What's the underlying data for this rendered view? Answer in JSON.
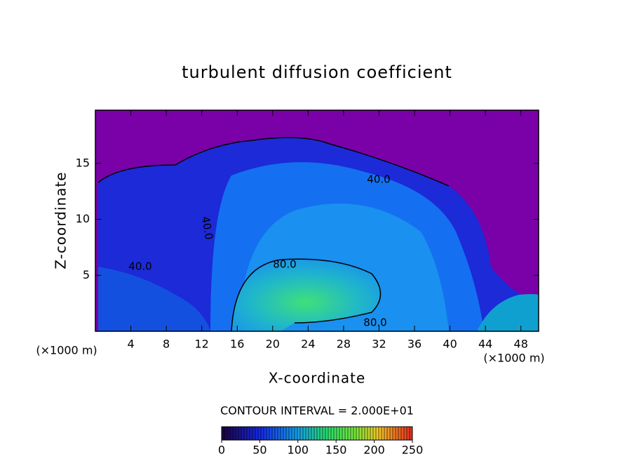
{
  "chart_data": {
    "type": "contour",
    "title": "turbulent diffusion coefficient",
    "x_label": "X-coordinate",
    "y_label": "Z-coordinate",
    "x_unit": "(×1000 m)",
    "y_unit": "(×1000 m)",
    "xlim": [
      0,
      50
    ],
    "xticks": [
      4,
      8,
      12,
      16,
      20,
      24,
      28,
      32,
      36,
      40,
      44,
      48
    ],
    "ylim": [
      0,
      19.75
    ],
    "yticks": [
      5,
      10,
      15
    ],
    "contour_interval_label": "CONTOUR INTERVAL = 2.000E+01",
    "contour_labels": [
      "40.0",
      "40.0",
      "40.0",
      "80.0",
      "80.0"
    ],
    "colorbar": {
      "lim": [
        0,
        250
      ],
      "ticks": [
        0,
        50,
        100,
        150,
        200,
        250
      ]
    }
  }
}
